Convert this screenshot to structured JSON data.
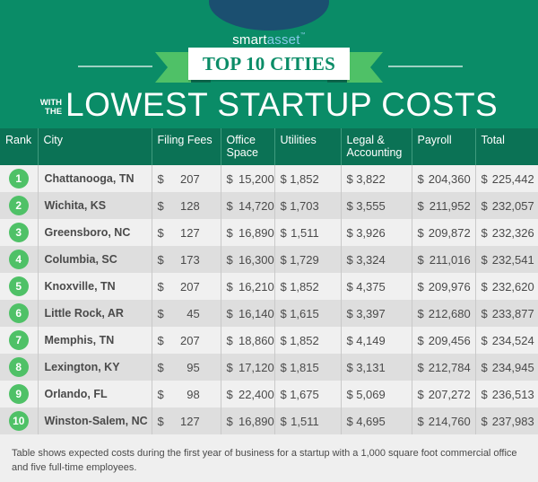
{
  "brand": {
    "logo_part1": "smart",
    "logo_part2": "asset",
    "logo_mark": "™",
    "colors": {
      "primary_green": "#0a8c67",
      "header_green": "#0b7255",
      "accent_green": "#4fc167",
      "logo_navy": "#1b4f70"
    }
  },
  "banner": {
    "ribbon_text": "TOP 10 CITIES",
    "prefix_line1": "WITH",
    "prefix_line2": "THE",
    "title": "LOWEST STARTUP COSTS"
  },
  "table": {
    "columns": [
      {
        "key": "rank",
        "label": "Rank"
      },
      {
        "key": "city",
        "label": "City"
      },
      {
        "key": "filing_fees",
        "label": "Filing Fees"
      },
      {
        "key": "office_space",
        "label": "Office Space"
      },
      {
        "key": "utilities",
        "label": "Utilities"
      },
      {
        "key": "legal_accounting",
        "label": "Legal & Accounting"
      },
      {
        "key": "payroll",
        "label": "Payroll"
      },
      {
        "key": "total",
        "label": "Total"
      }
    ],
    "header": {
      "rank": "Rank",
      "city": "City",
      "filing_fees": "Filing Fees",
      "office_space_1": "Office",
      "office_space_2": "Space",
      "utilities": "Utilities",
      "legal_1": "Legal &",
      "legal_2": "Accounting",
      "payroll": "Payroll",
      "total": "Total"
    },
    "currency_symbol": "$",
    "rows": [
      {
        "rank": "1",
        "city": "Chattanooga, TN",
        "filing_fees": "207",
        "office_space": "15,200",
        "utilities": "1,852",
        "legal_accounting": "3,822",
        "payroll": "204,360",
        "total": "225,442"
      },
      {
        "rank": "2",
        "city": "Wichita, KS",
        "filing_fees": "128",
        "office_space": "14,720",
        "utilities": "1,703",
        "legal_accounting": "3,555",
        "payroll": "211,952",
        "total": "232,057"
      },
      {
        "rank": "3",
        "city": "Greensboro, NC",
        "filing_fees": "127",
        "office_space": "16,890",
        "utilities": "1,511",
        "legal_accounting": "3,926",
        "payroll": "209,872",
        "total": "232,326"
      },
      {
        "rank": "4",
        "city": "Columbia, SC",
        "filing_fees": "173",
        "office_space": "16,300",
        "utilities": "1,729",
        "legal_accounting": "3,324",
        "payroll": "211,016",
        "total": "232,541"
      },
      {
        "rank": "5",
        "city": "Knoxville, TN",
        "filing_fees": "207",
        "office_space": "16,210",
        "utilities": "1,852",
        "legal_accounting": "4,375",
        "payroll": "209,976",
        "total": "232,620"
      },
      {
        "rank": "6",
        "city": "Little Rock, AR",
        "filing_fees": "45",
        "office_space": "16,140",
        "utilities": "1,615",
        "legal_accounting": "3,397",
        "payroll": "212,680",
        "total": "233,877"
      },
      {
        "rank": "7",
        "city": "Memphis, TN",
        "filing_fees": "207",
        "office_space": "18,860",
        "utilities": "1,852",
        "legal_accounting": "4,149",
        "payroll": "209,456",
        "total": "234,524"
      },
      {
        "rank": "8",
        "city": "Lexington, KY",
        "filing_fees": "95",
        "office_space": "17,120",
        "utilities": "1,815",
        "legal_accounting": "3,131",
        "payroll": "212,784",
        "total": "234,945"
      },
      {
        "rank": "9",
        "city": "Orlando, FL",
        "filing_fees": "98",
        "office_space": "22,400",
        "utilities": "1,675",
        "legal_accounting": "5,069",
        "payroll": "207,272",
        "total": "236,513"
      },
      {
        "rank": "10",
        "city": "Winston-Salem, NC",
        "filing_fees": "127",
        "office_space": "16,890",
        "utilities": "1,511",
        "legal_accounting": "4,695",
        "payroll": "214,760",
        "total": "237,983"
      }
    ]
  },
  "footnote": "Table shows expected costs during the first year of business for a startup with a 1,000 square foot commercial office and five full-time employees."
}
